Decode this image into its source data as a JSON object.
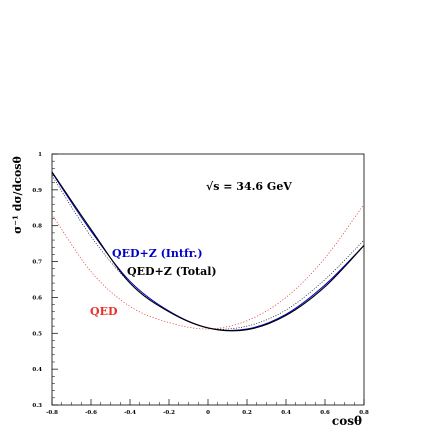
{
  "chart_data": {
    "type": "line",
    "title": "",
    "xlabel": "cosθ",
    "ylabel": "σ⁻¹ dσ/dcosθ",
    "xlim": [
      -0.8,
      0.8
    ],
    "ylim": [
      0.3,
      1.0
    ],
    "x_ticks": [
      "-0.8",
      "-0.6",
      "-0.4",
      "-0.2",
      "0",
      "0.2",
      "0.4",
      "0.6",
      "0.8"
    ],
    "y_ticks": [
      "0.3",
      "0.4",
      "0.5",
      "0.6",
      "0.7",
      "0.8",
      "0.9",
      "1"
    ],
    "grid": false,
    "x": [
      -0.8,
      -0.6,
      -0.4,
      -0.2,
      0.0,
      0.2,
      0.4,
      0.6,
      0.8
    ],
    "series": [
      {
        "name": "QED+Z (Total)",
        "color": "#000000",
        "style": "solid",
        "values": [
          0.95,
          0.79,
          0.64,
          0.56,
          0.515,
          0.51,
          0.55,
          0.63,
          0.745
        ]
      },
      {
        "name": "QED+Z (Intfr.)",
        "color": "#0000cc",
        "style": "solid",
        "values": [
          0.948,
          0.785,
          0.645,
          0.562,
          0.515,
          0.512,
          0.553,
          0.635,
          0.745
        ]
      },
      {
        "name": "",
        "color": "#000000",
        "style": "dotted",
        "values": [
          0.94,
          0.77,
          0.64,
          0.56,
          0.515,
          0.52,
          0.565,
          0.65,
          0.76
        ]
      },
      {
        "name": "QED",
        "color": "#e8302a",
        "style": "dotted",
        "values": [
          0.832,
          0.672,
          0.575,
          0.53,
          0.512,
          0.535,
          0.6,
          0.71,
          0.86
        ]
      }
    ],
    "annotations": {
      "energy": "√s = 34.6 GeV",
      "total": "QED+Z (Total)",
      "intfr": "QED+Z (Intfr.)",
      "qed": "QED"
    }
  }
}
